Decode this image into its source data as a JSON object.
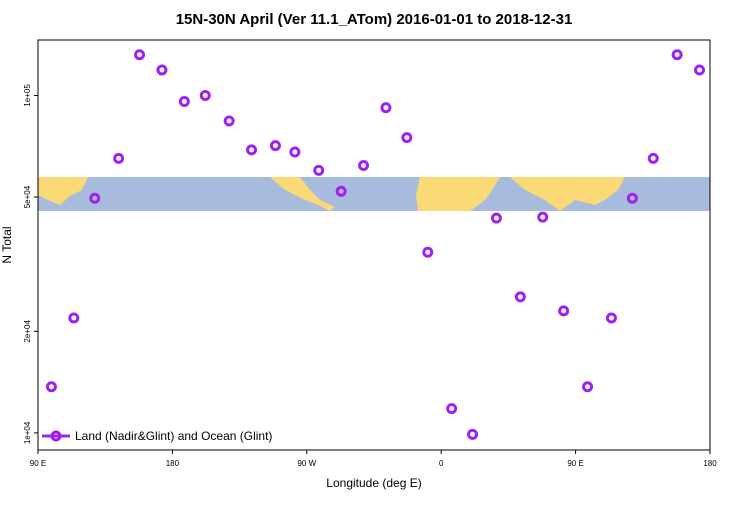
{
  "chart_data": {
    "type": "scatter",
    "title": "15N-30N April (Ver 11.1_ATom)   2016-01-01 to 2018-12-31",
    "x_label": "Longitude (deg E)",
    "y_label": "N Total",
    "y_scale": "log",
    "legend_position": "bottom-left",
    "xlim": [
      90,
      540
    ],
    "xticks": [
      {
        "value": 90,
        "label": "90 E"
      },
      {
        "value": 180,
        "label": "180"
      },
      {
        "value": 270,
        "label": "90 W"
      },
      {
        "value": 360,
        "label": "0"
      },
      {
        "value": 450,
        "label": "90 E"
      },
      {
        "value": 540,
        "label": "180"
      }
    ],
    "ylim": [
      8900,
      146000
    ],
    "yticks": [
      {
        "value": 10000,
        "label": "1e+04"
      },
      {
        "value": 20000,
        "label": "2e+04"
      },
      {
        "value": 50000,
        "label": "5e+04"
      },
      {
        "value": 100000,
        "label": "1e+05"
      }
    ],
    "series": [
      {
        "name": "Land (Nadir&Glint) and Ocean (Glint)",
        "color": "#a020f0",
        "x": [
          99,
          114,
          128,
          144,
          158,
          173,
          188,
          202,
          218,
          233,
          249,
          262,
          278,
          293,
          308,
          323,
          337,
          351,
          367,
          381,
          397,
          413,
          428,
          442,
          458,
          474,
          488,
          502,
          518,
          533
        ],
        "values": [
          13700,
          21900,
          49600,
          65100,
          132000,
          119000,
          96000,
          100000,
          84000,
          69000,
          71000,
          68000,
          60000,
          52000,
          62000,
          92000,
          75000,
          34300,
          11800,
          9900,
          43300,
          25300,
          43600,
          23000,
          13700,
          21900,
          49600,
          65100,
          132000,
          119000
        ]
      }
    ]
  }
}
